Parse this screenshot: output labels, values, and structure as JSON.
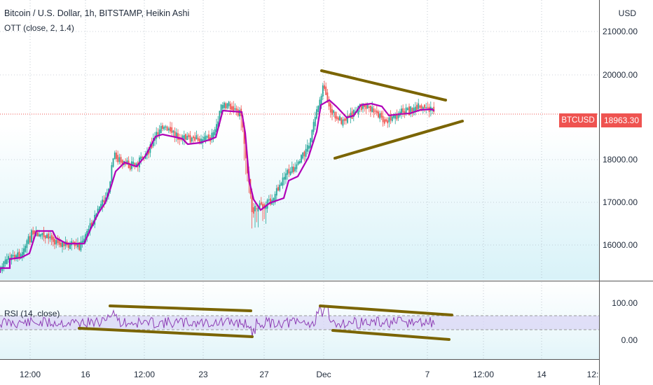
{
  "header": {
    "title": "Bitcoin / U.S. Dollar, 1h, BITSTAMP, Heikin Ashi",
    "indicator_main": "OTT (close, 2, 1.4)",
    "indicator_sub": "RSI (14, close)",
    "currency": "USD"
  },
  "price_axis": {
    "ticks": [
      "21000.00",
      "20000.00",
      "18000.00",
      "17000.00",
      "16000.00"
    ],
    "last_symbol": "BTCUSD",
    "last_price": "18963.30"
  },
  "rsi_axis": {
    "ticks": [
      "100.00",
      "0.00"
    ]
  },
  "time_axis": {
    "ticks": [
      "12:00",
      "16",
      "12:00",
      "23",
      "27",
      "Dec",
      "7",
      "12:00",
      "14",
      "12:"
    ]
  },
  "colors": {
    "bull": "#26a69a",
    "bear": "#ef5350",
    "ott": "#b000b8",
    "trend": "#7a6400",
    "rsi_line": "#8e3fb5",
    "rsi_band": "#d9d6f5",
    "pane_bg": "#e6f7fb"
  }
}
